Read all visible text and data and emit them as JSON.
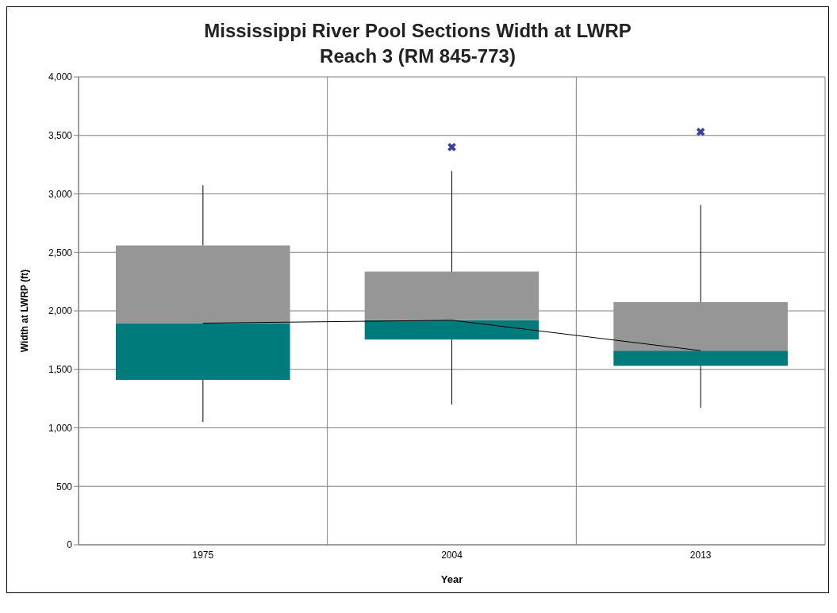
{
  "chart_data": {
    "type": "box",
    "title": "Mississippi River Pool Sections Width at LWRP",
    "subtitle": "Reach 3 (RM 845-773)",
    "xlabel": "Year",
    "ylabel": "Width at LWRP (ft)",
    "categories": [
      "1975",
      "2004",
      "2013"
    ],
    "series": [
      {
        "color": "#969696",
        "colors": [
          "#007b7b",
          "#007b7b",
          "#007b7b"
        ],
        "boxes": [
          {
            "low": 1050,
            "q1": 1410,
            "median": 1895,
            "q3": 2560,
            "high": 3075
          },
          {
            "low": 1200,
            "q1": 1755,
            "median": 1920,
            "q3": 2335,
            "high": 3195
          },
          {
            "low": 1170,
            "q1": 1530,
            "median": 1660,
            "q3": 2075,
            "high": 2905
          }
        ]
      },
      {
        "type": "scatter",
        "values": [
          null,
          3400,
          3530
        ],
        "color": "#3f3fa0",
        "marker": "cross"
      },
      {
        "type": "line",
        "color": "#000000",
        "values": [
          1895,
          1920,
          1660
        ]
      }
    ],
    "ylim": [
      0,
      4000
    ],
    "yticks": [
      {
        "value": 0,
        "label": "0"
      },
      {
        "value": 500,
        "label": "500"
      },
      {
        "value": 1000,
        "label": "1,000"
      },
      {
        "value": 1500,
        "label": "1,500"
      },
      {
        "value": 2000,
        "label": "2,000"
      },
      {
        "value": 2500,
        "label": "2,500"
      },
      {
        "value": 3000,
        "label": "3,000"
      },
      {
        "value": 3500,
        "label": "3,500"
      },
      {
        "value": 4000,
        "label": "4,000"
      }
    ],
    "grid": true
  }
}
